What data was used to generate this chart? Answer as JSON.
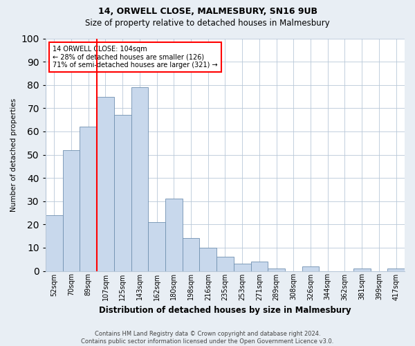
{
  "title1": "14, ORWELL CLOSE, MALMESBURY, SN16 9UB",
  "title2": "Size of property relative to detached houses in Malmesbury",
  "xlabel": "Distribution of detached houses by size in Malmesbury",
  "ylabel": "Number of detached properties",
  "categories": [
    "52sqm",
    "70sqm",
    "89sqm",
    "107sqm",
    "125sqm",
    "143sqm",
    "162sqm",
    "180sqm",
    "198sqm",
    "216sqm",
    "235sqm",
    "253sqm",
    "271sqm",
    "289sqm",
    "308sqm",
    "326sqm",
    "344sqm",
    "362sqm",
    "381sqm",
    "399sqm",
    "417sqm"
  ],
  "values": [
    24,
    52,
    62,
    75,
    67,
    79,
    21,
    31,
    14,
    10,
    6,
    3,
    4,
    1,
    0,
    2,
    0,
    0,
    1,
    0,
    1
  ],
  "bar_color": "#c8d8ec",
  "bar_edge_color": "#7090b0",
  "vline_x": 2.5,
  "vline_color": "red",
  "annotation_box_text": "14 ORWELL CLOSE: 104sqm\n← 28% of detached houses are smaller (126)\n71% of semi-detached houses are larger (321) →",
  "ylim": [
    0,
    100
  ],
  "yticks": [
    0,
    10,
    20,
    30,
    40,
    50,
    60,
    70,
    80,
    90,
    100
  ],
  "footer_text": "Contains HM Land Registry data © Crown copyright and database right 2024.\nContains public sector information licensed under the Open Government Licence v3.0.",
  "background_color": "#e8eef4",
  "plot_background_color": "#ffffff",
  "title1_fontsize": 9,
  "title2_fontsize": 8.5,
  "xlabel_fontsize": 8.5,
  "ylabel_fontsize": 7.5,
  "tick_fontsize": 7,
  "annot_fontsize": 7,
  "footer_fontsize": 6
}
